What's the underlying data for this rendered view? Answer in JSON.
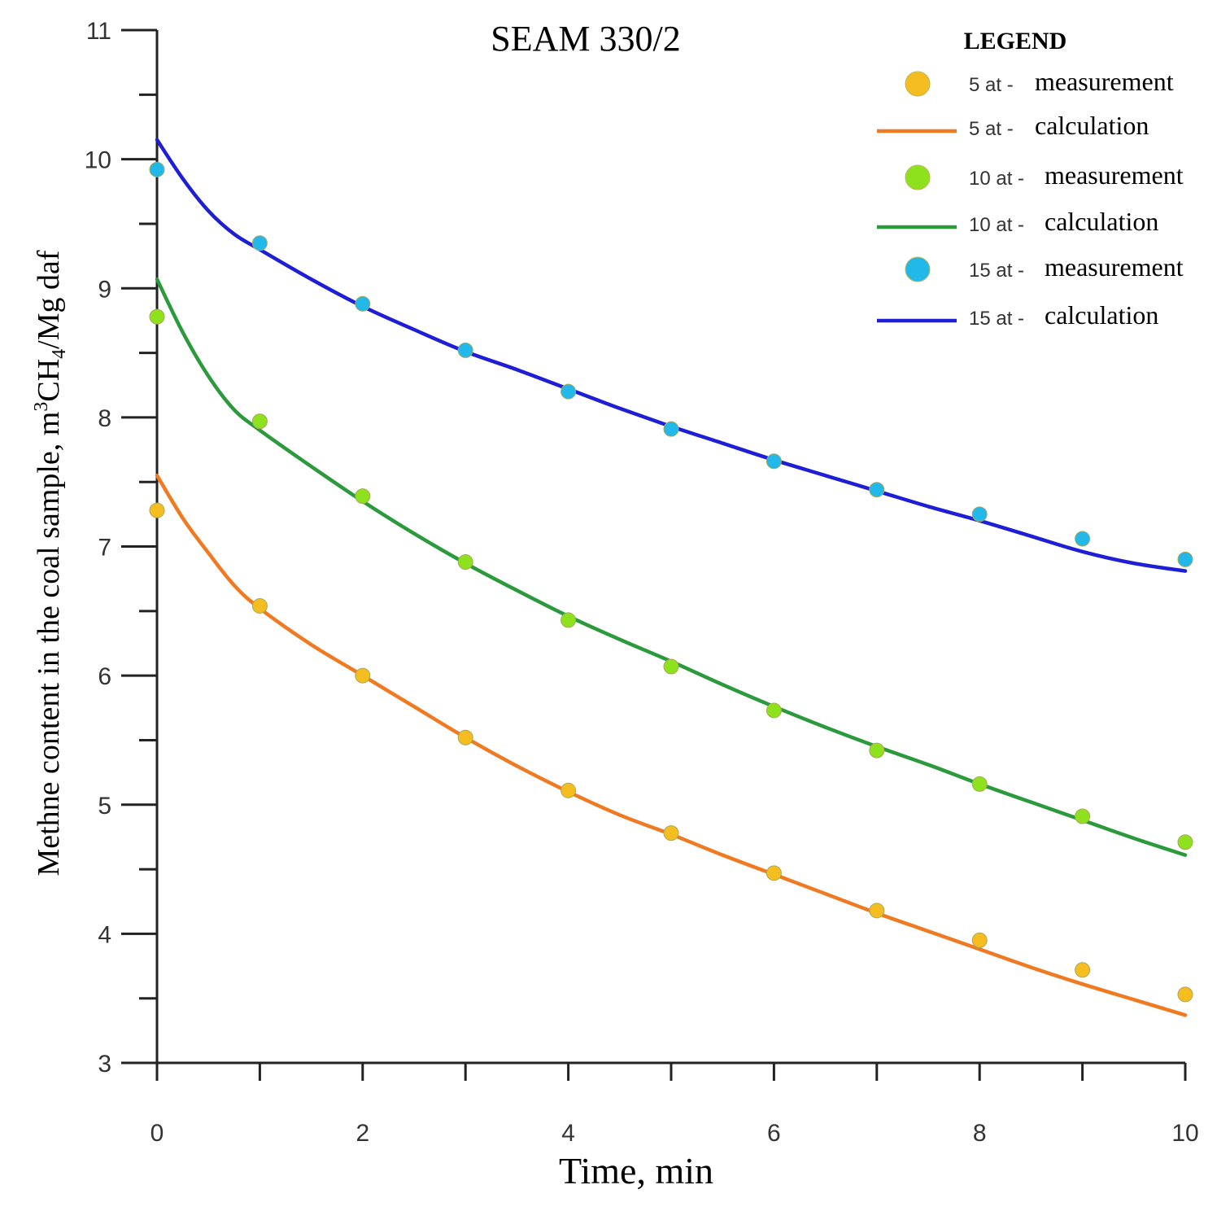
{
  "chart_data": {
    "type": "line",
    "title": "SEAM 330/2",
    "xlabel": "Time, min",
    "ylabel_parts": {
      "pre": "Methne content in the coal sample, m",
      "sup": "3",
      "mid": "CH",
      "sub": "4",
      "post": "/Mg daf"
    },
    "xlim": [
      0,
      10
    ],
    "ylim": [
      3,
      11
    ],
    "x_ticks": [
      0,
      2,
      4,
      6,
      8,
      10
    ],
    "x_ticks_minor": [
      1,
      3,
      5,
      7,
      9
    ],
    "y_ticks": [
      3,
      4,
      5,
      6,
      7,
      8,
      9,
      10,
      11
    ],
    "y_ticks_minor": [
      3.5,
      4.5,
      5.5,
      6.5,
      7.5,
      8.5,
      9.5,
      10.5
    ],
    "grid": false,
    "legend": {
      "title": "LEGEND",
      "position": "top-right",
      "entries": [
        {
          "kind": "marker",
          "prefix": "5 at -",
          "label": "measurement",
          "color": "#f5bd1f"
        },
        {
          "kind": "line",
          "prefix": "5 at -",
          "label": "calculation",
          "color": "#f07a22"
        },
        {
          "kind": "marker",
          "prefix": "10 at -",
          "label": "measurement",
          "color": "#8de21d"
        },
        {
          "kind": "line",
          "prefix": "10 at -",
          "label": "calculation",
          "color": "#2a9a3c"
        },
        {
          "kind": "marker",
          "prefix": "15 at -",
          "label": "measurement",
          "color": "#22b8ea"
        },
        {
          "kind": "line",
          "prefix": "15 at -",
          "label": "calculation",
          "color": "#1e1ed6"
        }
      ]
    },
    "measurements": [
      {
        "name": "5 at - measurement",
        "color": "#f5bd1f",
        "x": [
          0,
          1,
          2,
          3,
          4,
          5,
          6,
          7,
          8,
          9,
          10
        ],
        "y": [
          7.28,
          6.54,
          6.0,
          5.52,
          5.11,
          4.78,
          4.47,
          4.18,
          3.95,
          3.72,
          3.53
        ]
      },
      {
        "name": "10 at - measurement",
        "color": "#8de21d",
        "x": [
          0,
          1,
          2,
          3,
          4,
          5,
          6,
          7,
          8,
          9,
          10
        ],
        "y": [
          8.78,
          7.97,
          7.39,
          6.88,
          6.43,
          6.07,
          5.73,
          5.42,
          5.16,
          4.91,
          4.71
        ]
      },
      {
        "name": "15 at - measurement",
        "color": "#22b8ea",
        "x": [
          0,
          1,
          2,
          3,
          4,
          5,
          6,
          7,
          8,
          9,
          10
        ],
        "y": [
          9.92,
          9.35,
          8.88,
          8.52,
          8.2,
          7.91,
          7.66,
          7.44,
          7.25,
          7.06,
          6.9
        ]
      }
    ],
    "calculations": [
      {
        "name": "5 at - calculation",
        "color": "#f07a22",
        "x": [
          0,
          0.25,
          0.5,
          0.75,
          1,
          1.5,
          2,
          2.5,
          3,
          3.5,
          4,
          4.5,
          5,
          5.5,
          6,
          6.5,
          7,
          7.5,
          8,
          8.5,
          9,
          9.5,
          10
        ],
        "y": [
          7.55,
          7.22,
          6.95,
          6.7,
          6.52,
          6.24,
          6.0,
          5.76,
          5.52,
          5.3,
          5.1,
          4.92,
          4.77,
          4.61,
          4.46,
          4.31,
          4.16,
          4.02,
          3.88,
          3.74,
          3.61,
          3.49,
          3.37
        ]
      },
      {
        "name": "10 at - calculation",
        "color": "#2a9a3c",
        "x": [
          0,
          0.25,
          0.5,
          0.75,
          1,
          1.5,
          2,
          2.5,
          3,
          3.5,
          4,
          4.5,
          5,
          5.5,
          6,
          6.5,
          7,
          7.5,
          8,
          8.5,
          9,
          9.5,
          10
        ],
        "y": [
          9.07,
          8.66,
          8.32,
          8.06,
          7.9,
          7.62,
          7.35,
          7.1,
          6.87,
          6.66,
          6.46,
          6.28,
          6.11,
          5.93,
          5.76,
          5.6,
          5.45,
          5.31,
          5.16,
          5.02,
          4.88,
          4.74,
          4.61
        ]
      },
      {
        "name": "15 at - calculation",
        "color": "#1e1ed6",
        "x": [
          0,
          0.25,
          0.5,
          0.75,
          1,
          1.5,
          2,
          2.5,
          3,
          3.5,
          4,
          4.5,
          5,
          5.5,
          6,
          6.5,
          7,
          7.5,
          8,
          8.5,
          9,
          9.5,
          10
        ],
        "y": [
          10.15,
          9.85,
          9.6,
          9.42,
          9.3,
          9.07,
          8.86,
          8.68,
          8.51,
          8.37,
          8.22,
          8.07,
          7.93,
          7.8,
          7.67,
          7.55,
          7.43,
          7.31,
          7.2,
          7.08,
          6.96,
          6.87,
          6.81
        ]
      }
    ]
  }
}
